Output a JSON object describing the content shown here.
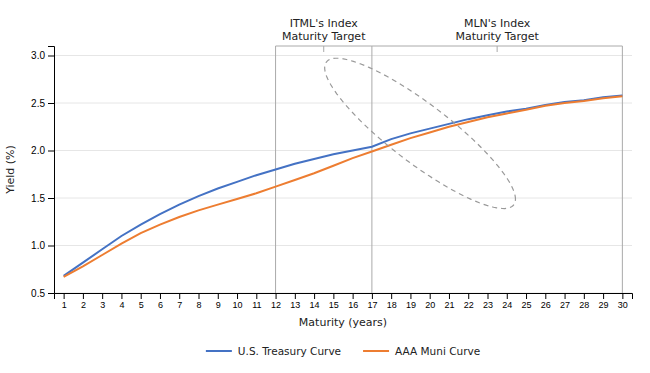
{
  "chart_data": {
    "type": "line",
    "xlabel": "Maturity (years)",
    "ylabel": "Yield (%)",
    "x": [
      1,
      2,
      3,
      4,
      5,
      6,
      7,
      8,
      9,
      10,
      11,
      12,
      13,
      14,
      15,
      16,
      17,
      18,
      19,
      20,
      21,
      22,
      23,
      24,
      25,
      26,
      27,
      28,
      29,
      30
    ],
    "series": [
      {
        "name": "U.S. Treasury Curve",
        "color": "#4472C4",
        "values": [
          0.68,
          0.82,
          0.96,
          1.1,
          1.22,
          1.33,
          1.43,
          1.52,
          1.6,
          1.67,
          1.74,
          1.8,
          1.86,
          1.91,
          1.96,
          2.0,
          2.04,
          2.12,
          2.18,
          2.23,
          2.28,
          2.33,
          2.37,
          2.41,
          2.44,
          2.48,
          2.51,
          2.53,
          2.56,
          2.58
        ]
      },
      {
        "name": "AAA Muni Curve",
        "color": "#ED7D31",
        "values": [
          0.67,
          0.78,
          0.9,
          1.02,
          1.13,
          1.22,
          1.3,
          1.37,
          1.43,
          1.49,
          1.55,
          1.62,
          1.69,
          1.76,
          1.84,
          1.92,
          1.99,
          2.06,
          2.13,
          2.19,
          2.25,
          2.3,
          2.35,
          2.39,
          2.43,
          2.47,
          2.5,
          2.52,
          2.55,
          2.57
        ]
      }
    ],
    "xlim": [
      0.5,
      30.5
    ],
    "xticks": [
      1,
      2,
      3,
      4,
      5,
      6,
      7,
      8,
      9,
      10,
      11,
      12,
      13,
      14,
      15,
      16,
      17,
      18,
      19,
      20,
      21,
      22,
      23,
      24,
      25,
      26,
      27,
      28,
      29,
      30
    ],
    "ylim": [
      0.5,
      3.1
    ],
    "yticks": [
      0.5,
      {
        "value": 1.0,
        "label": "1.0"
      },
      1.5,
      {
        "value": 2.0,
        "label": "2.0"
      },
      2.5,
      {
        "value": 3.0,
        "label": "3.0"
      }
    ],
    "grid": true,
    "legend": "bottom",
    "annotations": [
      {
        "text": "ITML's Index\nMaturity Target",
        "x": [
          12,
          17
        ]
      },
      {
        "text": "MLN's Index\nMaturity Target",
        "x": [
          17,
          30
        ]
      }
    ],
    "ellipse": {
      "cx": 19.5,
      "cy": 2.18,
      "rx": 5.0,
      "ry": 0.38
    }
  }
}
